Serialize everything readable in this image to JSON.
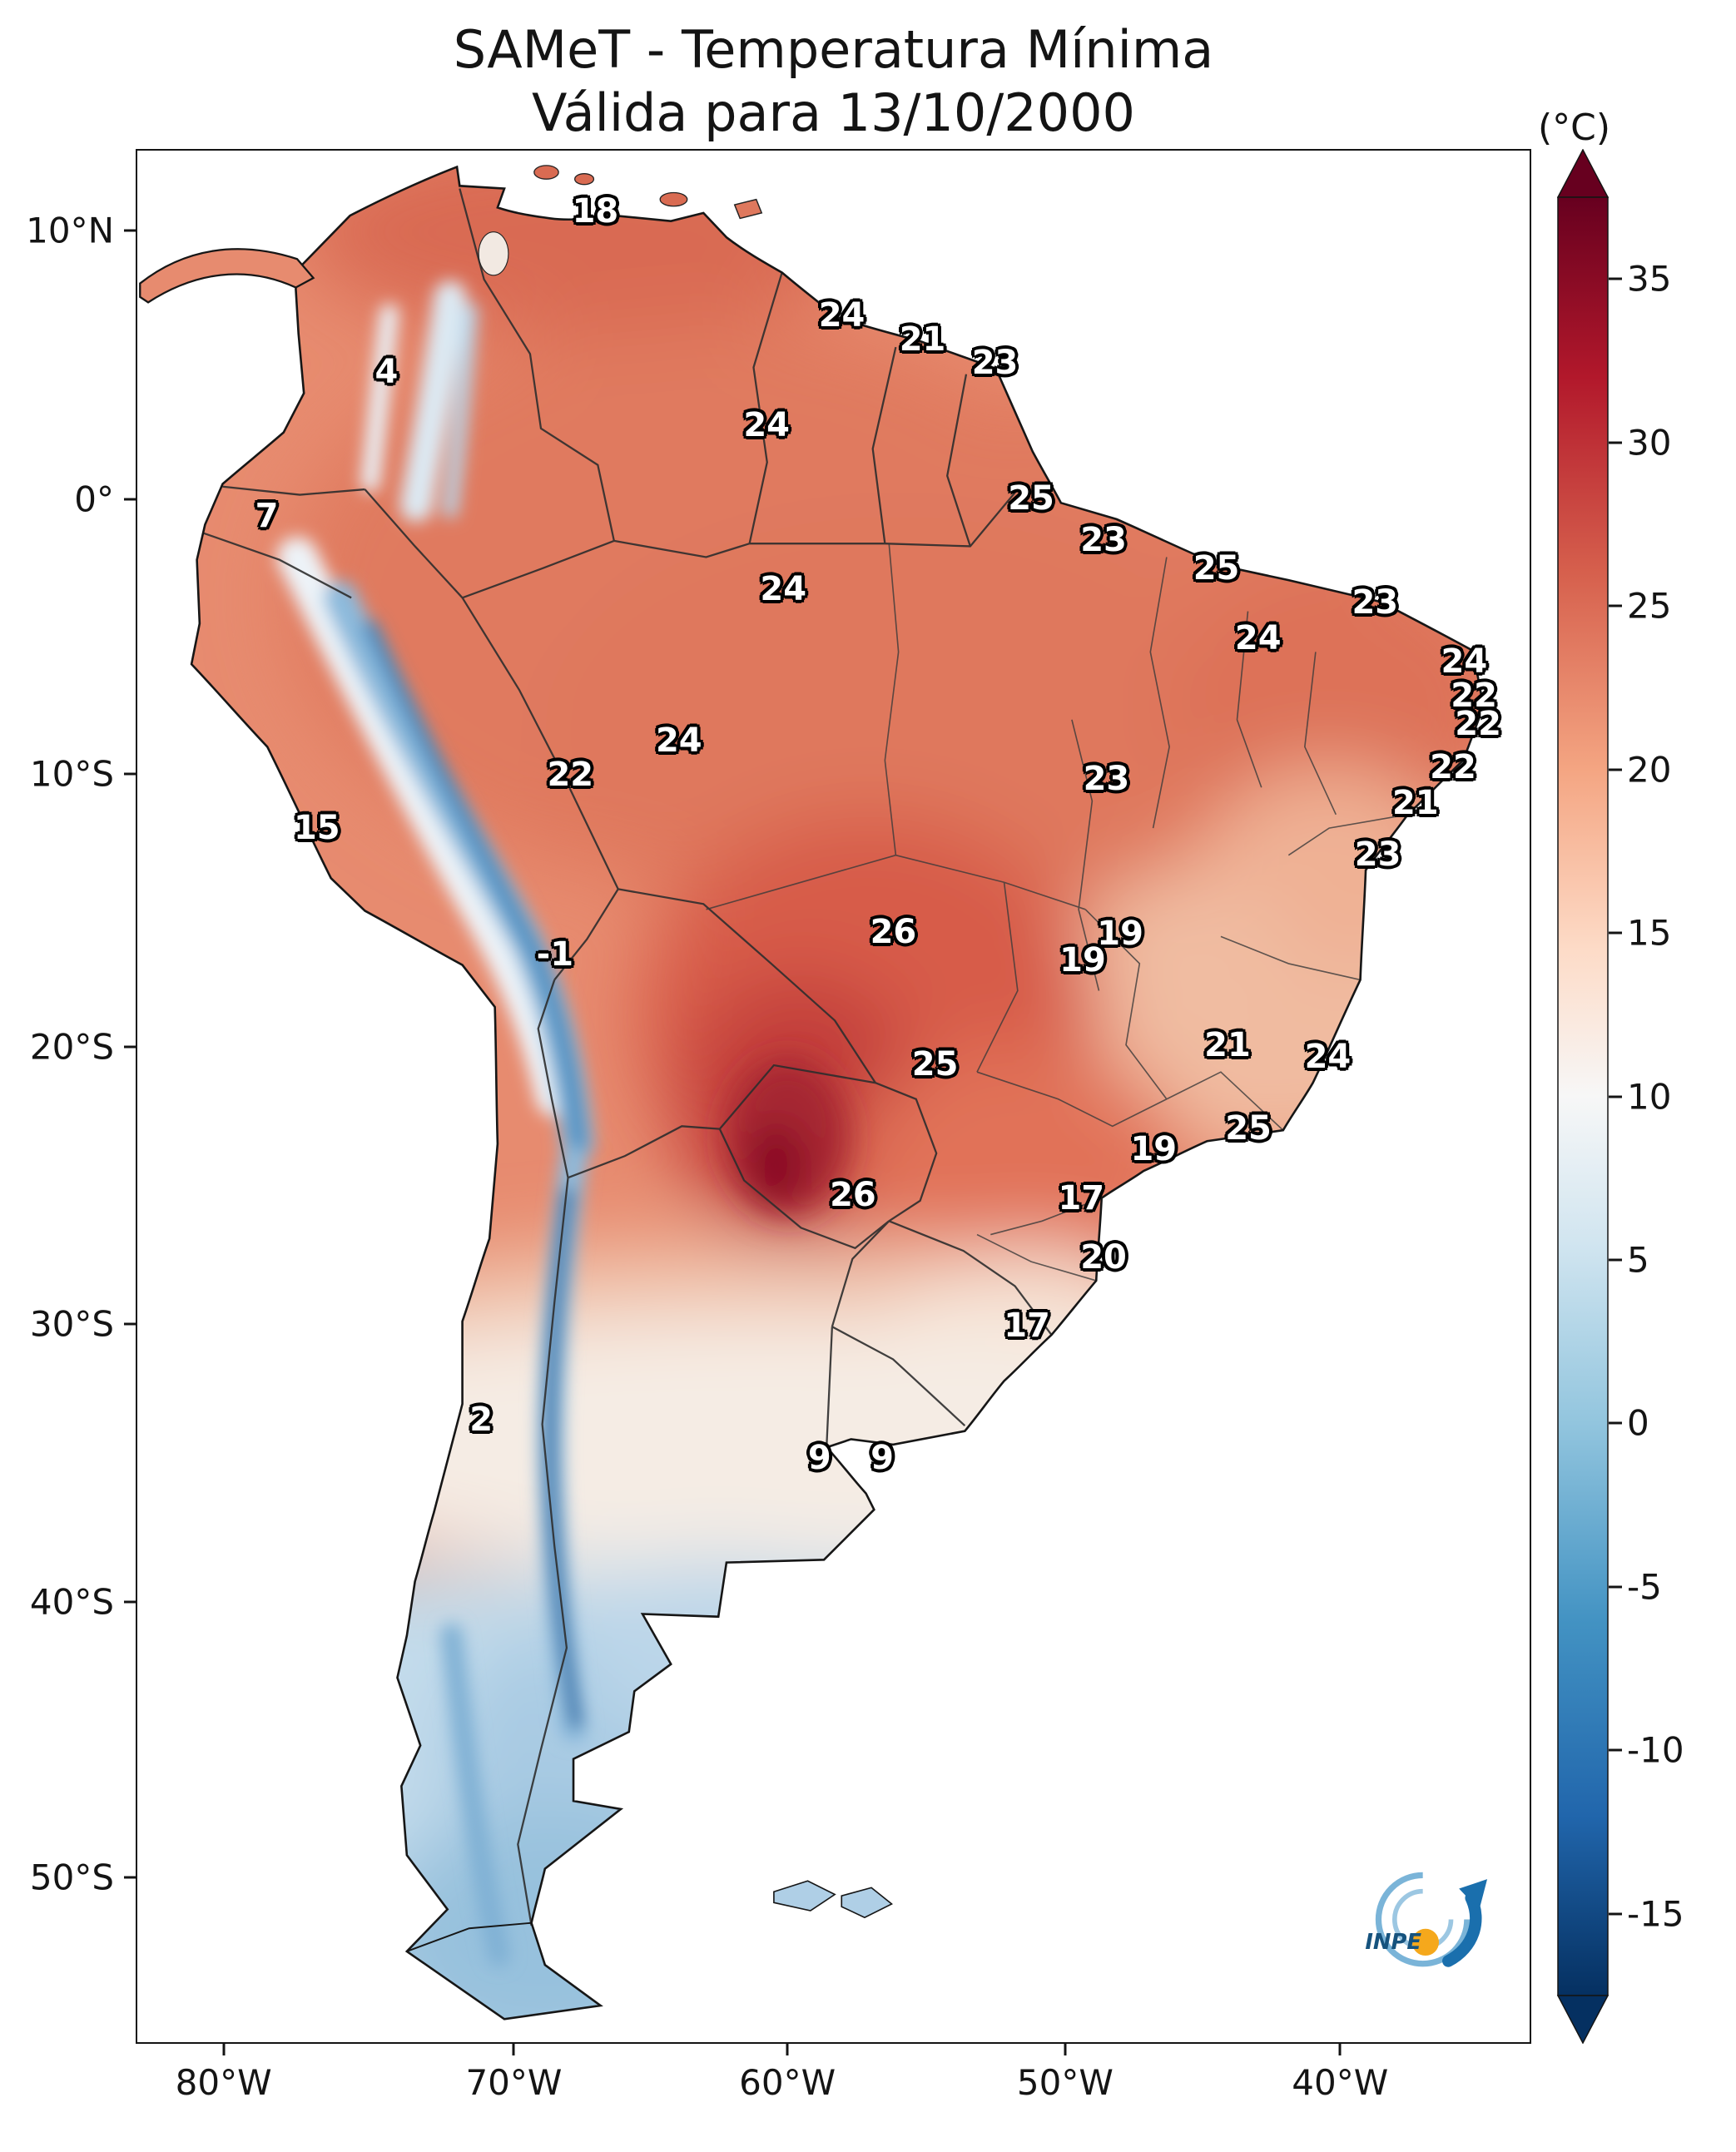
{
  "title": {
    "line1": "SAMeT - Temperatura Mínima",
    "line2": "Válida para 13/10/2000"
  },
  "axes": {
    "lat_ticks": [
      {
        "label": "10°N",
        "pos": 4.3
      },
      {
        "label": "0°",
        "pos": 18.5
      },
      {
        "label": "10°S",
        "pos": 33.0
      },
      {
        "label": "20°S",
        "pos": 47.4
      },
      {
        "label": "30°S",
        "pos": 62.0
      },
      {
        "label": "40°S",
        "pos": 76.7
      },
      {
        "label": "50°S",
        "pos": 91.2
      }
    ],
    "lon_ticks": [
      {
        "label": "80°W",
        "pos": 6.3
      },
      {
        "label": "70°W",
        "pos": 27.1
      },
      {
        "label": "60°W",
        "pos": 46.7
      },
      {
        "label": "50°W",
        "pos": 66.6
      },
      {
        "label": "40°W",
        "pos": 86.3
      }
    ]
  },
  "colorbar": {
    "unit": "(°C)",
    "min": -17.5,
    "max": 37.5,
    "ticks": [
      35,
      30,
      25,
      20,
      15,
      10,
      5,
      0,
      -5,
      -10,
      -15
    ],
    "gradient": [
      {
        "value": 37.5,
        "color": "#67001f"
      },
      {
        "value": 32,
        "color": "#b2182b"
      },
      {
        "value": 26,
        "color": "#d6604d"
      },
      {
        "value": 20,
        "color": "#f4a582"
      },
      {
        "value": 14.5,
        "color": "#fddbc7"
      },
      {
        "value": 10,
        "color": "#f7f7f7"
      },
      {
        "value": 5.5,
        "color": "#d1e5f0"
      },
      {
        "value": 0,
        "color": "#92c5de"
      },
      {
        "value": -6,
        "color": "#4393c3"
      },
      {
        "value": -12,
        "color": "#2166ac"
      },
      {
        "value": -17.5,
        "color": "#053061"
      }
    ]
  },
  "logo": {
    "text": "INPE",
    "accent_blue": "#1a6fad",
    "accent_orange": "#f5a81c"
  },
  "chart_data": {
    "type": "heatmap",
    "title": "SAMeT - Temperatura Mínima",
    "subtitle": "Válida para 13/10/2000",
    "variable": "minimum air temperature",
    "unit": "°C",
    "region": "South America",
    "colormap": "RdBu_r",
    "scale_range": [
      -17.5,
      37.5
    ],
    "scale_ticks": [
      35,
      30,
      25,
      20,
      15,
      10,
      5,
      0,
      -5,
      -10,
      -15
    ],
    "lat_axis_labels": [
      "10°N",
      "0°",
      "10°S",
      "20°S",
      "30°S",
      "40°S",
      "50°S"
    ],
    "lon_axis_labels": [
      "80°W",
      "70°W",
      "60°W",
      "50°W",
      "40°W"
    ],
    "legend_position": "right",
    "station_values": [
      {
        "temp": 18,
        "lon": -66.7,
        "lat": 10.8,
        "x": 32.9,
        "y": 3.2
      },
      {
        "temp": 24,
        "lon": -57.9,
        "lat": 6.9,
        "x": 50.6,
        "y": 8.7
      },
      {
        "temp": 21,
        "lon": -54.9,
        "lat": 6.0,
        "x": 56.4,
        "y": 10.0
      },
      {
        "temp": 23,
        "lon": -52.4,
        "lat": 5.1,
        "x": 61.6,
        "y": 11.2
      },
      {
        "temp": 4,
        "lon": -74.2,
        "lat": 4.7,
        "x": 17.9,
        "y": 11.7
      },
      {
        "temp": 24,
        "lon": -60.5,
        "lat": 2.8,
        "x": 45.2,
        "y": 14.5
      },
      {
        "temp": 7,
        "lon": -78.5,
        "lat": -0.5,
        "x": 9.3,
        "y": 19.3
      },
      {
        "temp": 25,
        "lon": -51.0,
        "lat": 0.0,
        "x": 64.2,
        "y": 18.4
      },
      {
        "temp": 23,
        "lon": -48.5,
        "lat": -1.4,
        "x": 69.4,
        "y": 20.6
      },
      {
        "temp": 25,
        "lon": -44.4,
        "lat": -2.5,
        "x": 77.5,
        "y": 22.1
      },
      {
        "temp": 24,
        "lon": -60.0,
        "lat": -3.3,
        "x": 46.4,
        "y": 23.2
      },
      {
        "temp": 23,
        "lon": -38.7,
        "lat": -3.8,
        "x": 88.9,
        "y": 23.9
      },
      {
        "temp": 24,
        "lon": -42.9,
        "lat": -5.0,
        "x": 80.5,
        "y": 25.8
      },
      {
        "temp": 24,
        "lon": -35.5,
        "lat": -5.9,
        "x": 95.3,
        "y": 27.0
      },
      {
        "temp": 22,
        "lon": -35.1,
        "lat": -7.1,
        "x": 96.0,
        "y": 28.8
      },
      {
        "temp": 22,
        "lon": -35.0,
        "lat": -8.2,
        "x": 96.3,
        "y": 30.3
      },
      {
        "temp": 24,
        "lon": -63.7,
        "lat": -8.8,
        "x": 38.9,
        "y": 31.2
      },
      {
        "temp": 22,
        "lon": -67.6,
        "lat": -10.0,
        "x": 31.1,
        "y": 33.0
      },
      {
        "temp": 22,
        "lon": -35.9,
        "lat": -9.8,
        "x": 94.5,
        "y": 32.6
      },
      {
        "temp": 23,
        "lon": -48.3,
        "lat": -10.2,
        "x": 69.6,
        "y": 33.2
      },
      {
        "temp": 21,
        "lon": -37.2,
        "lat": -11.1,
        "x": 91.8,
        "y": 34.5
      },
      {
        "temp": 15,
        "lon": -76.7,
        "lat": -12.0,
        "x": 12.9,
        "y": 35.8
      },
      {
        "temp": 23,
        "lon": -38.6,
        "lat": -13.0,
        "x": 89.1,
        "y": 37.2
      },
      {
        "temp": -1,
        "lon": -68.2,
        "lat": -16.6,
        "x": 30.0,
        "y": 42.5
      },
      {
        "temp": 26,
        "lon": -56.0,
        "lat": -15.7,
        "x": 54.3,
        "y": 41.3
      },
      {
        "temp": 19,
        "lon": -47.8,
        "lat": -15.8,
        "x": 70.6,
        "y": 41.4
      },
      {
        "temp": 19,
        "lon": -49.2,
        "lat": -16.8,
        "x": 67.9,
        "y": 42.8
      },
      {
        "temp": 21,
        "lon": -44.0,
        "lat": -19.9,
        "x": 78.3,
        "y": 47.3
      },
      {
        "temp": 24,
        "lon": -40.4,
        "lat": -20.3,
        "x": 85.5,
        "y": 47.9
      },
      {
        "temp": 25,
        "lon": -54.5,
        "lat": -20.6,
        "x": 57.3,
        "y": 48.3
      },
      {
        "temp": 19,
        "lon": -46.6,
        "lat": -23.7,
        "x": 73.0,
        "y": 52.8
      },
      {
        "temp": 25,
        "lon": -43.3,
        "lat": -23.0,
        "x": 79.8,
        "y": 51.7
      },
      {
        "temp": 26,
        "lon": -57.5,
        "lat": -25.4,
        "x": 51.4,
        "y": 55.2
      },
      {
        "temp": 17,
        "lon": -49.2,
        "lat": -25.5,
        "x": 67.8,
        "y": 55.4
      },
      {
        "temp": 20,
        "lon": -48.5,
        "lat": -27.7,
        "x": 69.4,
        "y": 58.5
      },
      {
        "temp": 17,
        "lon": -51.2,
        "lat": -30.1,
        "x": 63.9,
        "y": 62.1
      },
      {
        "temp": 2,
        "lon": -70.8,
        "lat": -33.6,
        "x": 24.7,
        "y": 67.1
      },
      {
        "temp": 9,
        "lon": -58.6,
        "lat": -35.0,
        "x": 49.0,
        "y": 69.1
      },
      {
        "temp": 9,
        "lon": -56.4,
        "lat": -35.0,
        "x": 53.5,
        "y": 69.1
      }
    ]
  }
}
